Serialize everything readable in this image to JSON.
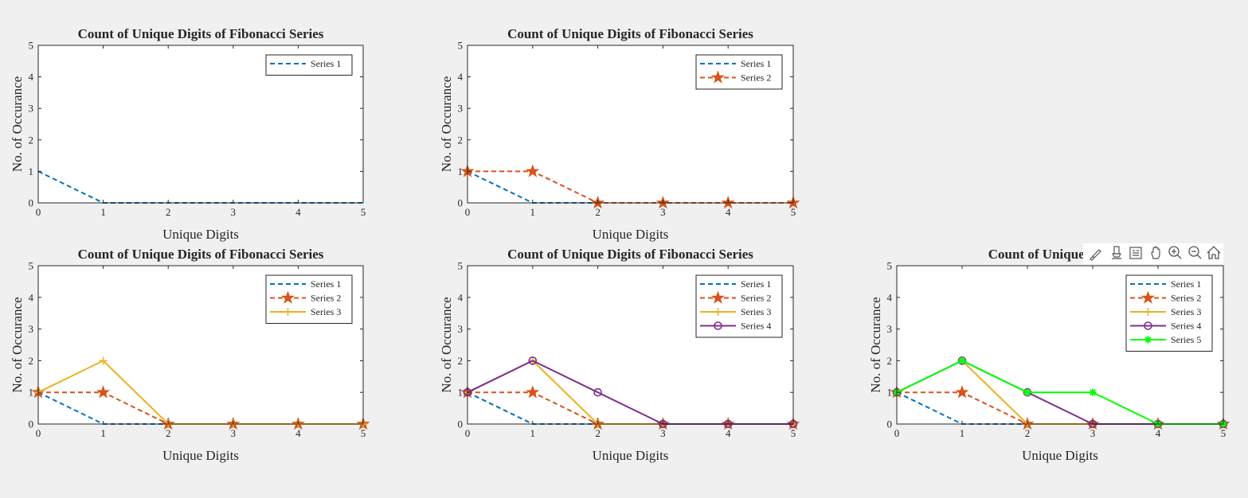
{
  "figure": {
    "background": "#f0f0f0",
    "axes_background": "#ffffff"
  },
  "toolbar": {
    "icons": [
      "brush-icon",
      "data-tips-icon",
      "insert-legend-icon",
      "pan-icon",
      "zoom-in-icon",
      "zoom-out-icon",
      "home-icon"
    ]
  },
  "chart_data": [
    {
      "type": "line",
      "title": "Count of Unique Digits of Fibonacci Series",
      "xlabel": "Unique Digits",
      "ylabel": "No. of Occurance",
      "xlim": [
        0,
        5
      ],
      "ylim": [
        0,
        5
      ],
      "xticks": [
        "0",
        "1",
        "2",
        "3",
        "4",
        "5"
      ],
      "yticks": [
        "0",
        "1",
        "2",
        "3",
        "4",
        "5"
      ],
      "grid": false,
      "legend_position": "top-right",
      "x": [
        0,
        1,
        2,
        3,
        4,
        5
      ],
      "series": [
        {
          "name": "Series 1",
          "values": [
            1,
            0,
            0,
            0,
            0,
            0
          ],
          "color": "#0072bd",
          "dash": true,
          "marker": "none"
        }
      ]
    },
    {
      "type": "line",
      "title": "Count of Unique Digits of Fibonacci Series",
      "xlabel": "Unique Digits",
      "ylabel": "No. of Occurance",
      "xlim": [
        0,
        5
      ],
      "ylim": [
        0,
        5
      ],
      "xticks": [
        "0",
        "1",
        "2",
        "3",
        "4",
        "5"
      ],
      "yticks": [
        "0",
        "1",
        "2",
        "3",
        "4",
        "5"
      ],
      "grid": false,
      "legend_position": "top-right",
      "x": [
        0,
        1,
        2,
        3,
        4,
        5
      ],
      "series": [
        {
          "name": "Series 1",
          "values": [
            1,
            0,
            0,
            0,
            0,
            0
          ],
          "color": "#0072bd",
          "dash": true,
          "marker": "none"
        },
        {
          "name": "Series 2",
          "values": [
            1,
            1,
            0,
            0,
            0,
            0
          ],
          "color": "#d95319",
          "dash": true,
          "marker": "star"
        }
      ]
    },
    {
      "type": "line",
      "title": "Count of Unique Digits of Fibonacci Series",
      "xlabel": "Unique Digits",
      "ylabel": "No. of Occurance",
      "xlim": [
        0,
        5
      ],
      "ylim": [
        0,
        5
      ],
      "xticks": [
        "0",
        "1",
        "2",
        "3",
        "4",
        "5"
      ],
      "yticks": [
        "0",
        "1",
        "2",
        "3",
        "4",
        "5"
      ],
      "grid": false,
      "legend_position": "top-right",
      "x": [
        0,
        1,
        2,
        3,
        4,
        5
      ],
      "series": [
        {
          "name": "Series 1",
          "values": [
            1,
            0,
            0,
            0,
            0,
            0
          ],
          "color": "#0072bd",
          "dash": true,
          "marker": "none"
        },
        {
          "name": "Series 2",
          "values": [
            1,
            1,
            0,
            0,
            0,
            0
          ],
          "color": "#d95319",
          "dash": true,
          "marker": "star"
        },
        {
          "name": "Series 3",
          "values": [
            1,
            2,
            0,
            0,
            0,
            0
          ],
          "color": "#edb120",
          "dash": false,
          "marker": "plus"
        }
      ]
    },
    {
      "type": "line",
      "title": "Count of Unique Digits of Fibonacci Series",
      "xlabel": "Unique Digits",
      "ylabel": "No. of Occurance",
      "xlim": [
        0,
        5
      ],
      "ylim": [
        0,
        5
      ],
      "xticks": [
        "0",
        "1",
        "2",
        "3",
        "4",
        "5"
      ],
      "yticks": [
        "0",
        "1",
        "2",
        "3",
        "4",
        "5"
      ],
      "grid": false,
      "legend_position": "top-right",
      "x": [
        0,
        1,
        2,
        3,
        4,
        5
      ],
      "series": [
        {
          "name": "Series 1",
          "values": [
            1,
            0,
            0,
            0,
            0,
            0
          ],
          "color": "#0072bd",
          "dash": true,
          "marker": "none"
        },
        {
          "name": "Series 2",
          "values": [
            1,
            1,
            0,
            0,
            0,
            0
          ],
          "color": "#d95319",
          "dash": true,
          "marker": "star"
        },
        {
          "name": "Series 3",
          "values": [
            1,
            2,
            0,
            0,
            0,
            0
          ],
          "color": "#edb120",
          "dash": false,
          "marker": "plus"
        },
        {
          "name": "Series 4",
          "values": [
            1,
            2,
            1,
            0,
            0,
            0
          ],
          "color": "#7e2f8e",
          "dash": false,
          "marker": "circle"
        }
      ]
    },
    {
      "type": "line",
      "title": "Count of Unique Digits o",
      "xlabel": "Unique Digits",
      "ylabel": "No. of Occurance",
      "xlim": [
        0,
        5
      ],
      "ylim": [
        0,
        5
      ],
      "xticks": [
        "0",
        "1",
        "2",
        "3",
        "4",
        "5"
      ],
      "yticks": [
        "0",
        "1",
        "2",
        "3",
        "4",
        "5"
      ],
      "grid": false,
      "legend_position": "top-right",
      "x": [
        0,
        1,
        2,
        3,
        4,
        5
      ],
      "series": [
        {
          "name": "Series 1",
          "values": [
            1,
            0,
            0,
            0,
            0,
            0
          ],
          "color": "#0072bd",
          "dash": true,
          "marker": "none"
        },
        {
          "name": "Series 2",
          "values": [
            1,
            1,
            0,
            0,
            0,
            0
          ],
          "color": "#d95319",
          "dash": true,
          "marker": "star"
        },
        {
          "name": "Series 3",
          "values": [
            1,
            2,
            0,
            0,
            0,
            0
          ],
          "color": "#edb120",
          "dash": false,
          "marker": "plus"
        },
        {
          "name": "Series 4",
          "values": [
            1,
            2,
            1,
            0,
            0,
            0
          ],
          "color": "#7e2f8e",
          "dash": false,
          "marker": "circle"
        },
        {
          "name": "Series 5",
          "values": [
            1,
            2,
            1,
            1,
            0,
            0
          ],
          "color": "#00ff00",
          "dash": false,
          "marker": "asterisk"
        }
      ]
    }
  ]
}
